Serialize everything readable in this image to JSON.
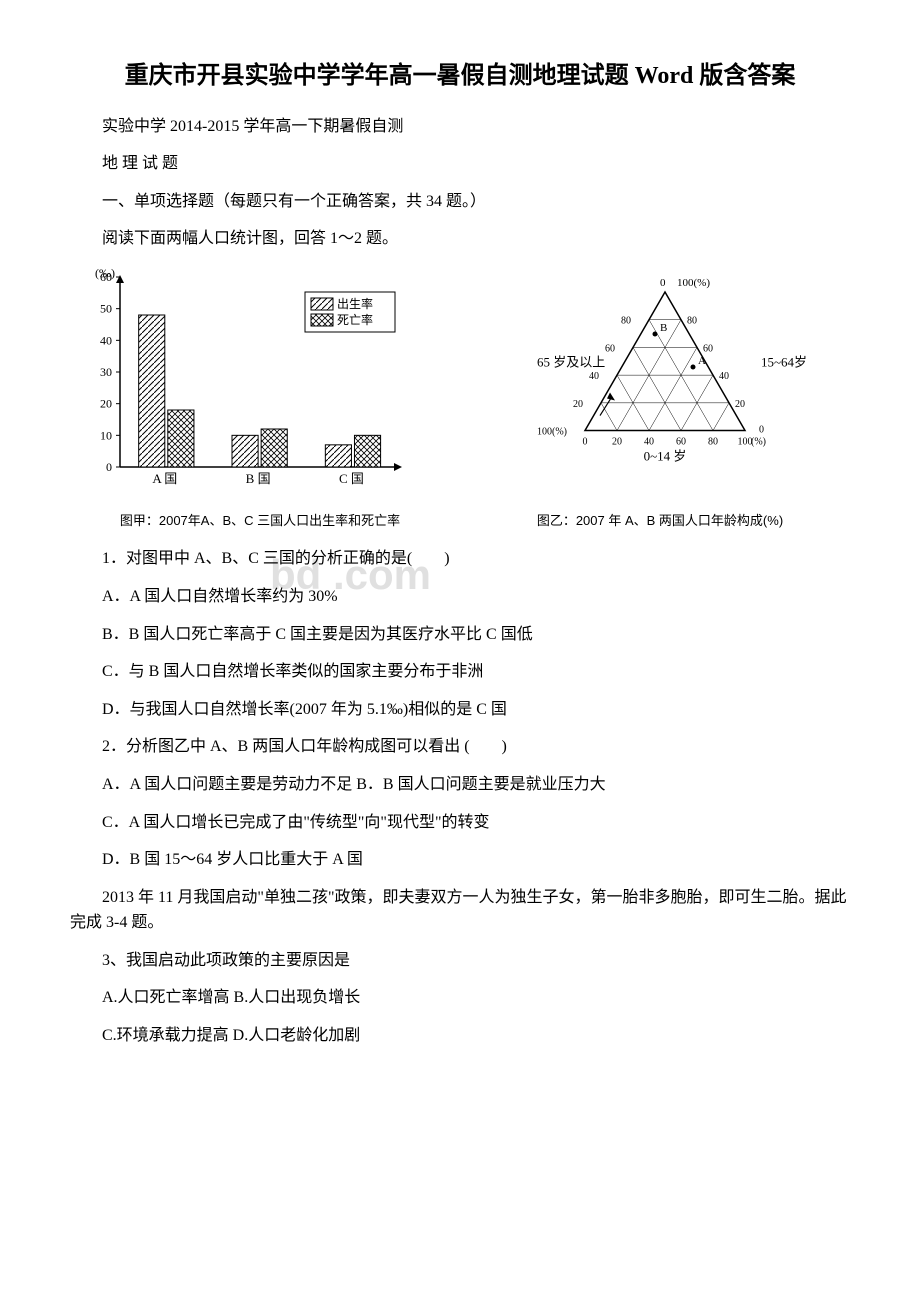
{
  "title": "重庆市开县实验中学学年高一暑假自测地理试题 Word 版含答案",
  "subtitle1": "实验中学 2014-2015 学年高一下期暑假自测",
  "subtitle2": "地 理 试 题",
  "section1": "一、单项选择题（每题只有一个正确答案，共 34 题。）",
  "intro1": "阅读下面两幅人口统计图，回答 1～2 题。",
  "chart1": {
    "type": "bar",
    "y_axis_label": "(‰)",
    "y_max": 60,
    "y_ticks": [
      0,
      10,
      20,
      30,
      40,
      50,
      60
    ],
    "categories": [
      "A 国",
      "B 国",
      "C 国"
    ],
    "legend": [
      {
        "label": "出生率",
        "pattern": "hatch-diag",
        "color": "#ffffff",
        "border": "#000000"
      },
      {
        "label": "死亡率",
        "pattern": "hatch-cross",
        "color": "#ffffff",
        "border": "#000000"
      }
    ],
    "series": {
      "birth_rate": [
        48,
        10,
        7
      ],
      "death_rate": [
        18,
        12,
        10
      ]
    },
    "bar_width": 0.35,
    "background_color": "#ffffff",
    "axis_color": "#000000",
    "caption": "图甲：2007年A、B、C 三国人口出生率和死亡率"
  },
  "chart2": {
    "type": "ternary",
    "axes": [
      {
        "label": "65 岁及以上",
        "position": "left"
      },
      {
        "label": "15~64岁",
        "position": "right"
      },
      {
        "label": "0~14 岁",
        "position": "bottom"
      }
    ],
    "ticks": [
      0,
      20,
      40,
      60,
      80,
      100
    ],
    "unit": "(%)",
    "points": [
      {
        "label": "A",
        "pos_0_14": 25,
        "pos_15_64": 65,
        "pos_65_plus": 10
      },
      {
        "label": "B",
        "pos_0_14": 18,
        "pos_15_64": 67,
        "pos_65_plus": 15
      }
    ],
    "line_color": "#000000",
    "background_color": "#ffffff",
    "caption": "图乙：2007 年 A、B 两国人口年龄构成(%)"
  },
  "watermark": "bd    .com",
  "q1": {
    "stem": "1．对图甲中 A、B、C 三国的分析正确的是(　　)",
    "a": "A．A 国人口自然增长率约为 30%",
    "b": "B．B 国人口死亡率高于 C 国主要是因为其医疗水平比 C 国低",
    "c": "C．与 B 国人口自然增长率类似的国家主要分布于非洲",
    "d": "D．与我国人口自然增长率(2007 年为 5.1‰)相似的是 C 国"
  },
  "q2": {
    "stem": "2．分析图乙中 A、B 两国人口年龄构成图可以看出 (　　)",
    "a": "A．A 国人口问题主要是劳动力不足 B．B 国人口问题主要是就业压力大",
    "c": "C．A 国人口增长已完成了由\"传统型\"向\"现代型\"的转变",
    "d": "D．B 国 15～64 岁人口比重大于 A 国"
  },
  "intro2": "2013 年 11 月我国启动\"单独二孩\"政策，即夫妻双方一人为独生子女，第一胎非多胞胎，即可生二胎。据此完成 3-4 题。",
  "q3": {
    "stem": "3、我国启动此项政策的主要原因是",
    "ab": "A.人口死亡率增高 B.人口出现负增长",
    "cd": "C.环境承载力提高 D.人口老龄化加剧"
  }
}
